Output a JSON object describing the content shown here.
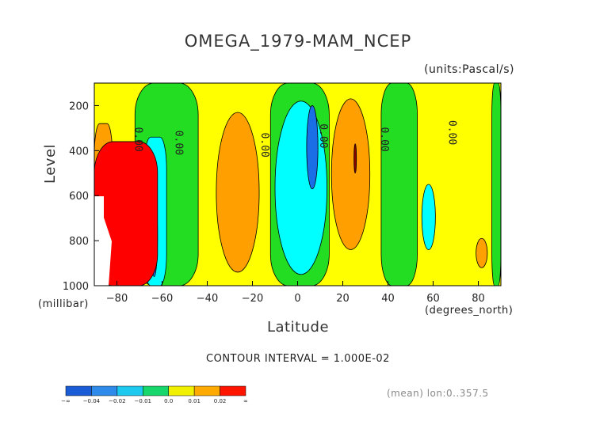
{
  "chart_data": {
    "type": "heatmap",
    "title": "OMEGA_1979-MAM_NCEP",
    "units": "(units:Pascal/s)",
    "xlabel": "Latitude",
    "xunit": "(degrees_north)",
    "ylabel": "Level",
    "yunit": "(millibar)",
    "xlim": [
      -90,
      90
    ],
    "ylim": [
      1000,
      100
    ],
    "x_ticks": [
      -80,
      -60,
      -40,
      -20,
      0,
      20,
      40,
      60,
      80
    ],
    "x_tick_labels": [
      "-80",
      "-60",
      "-40",
      "-20",
      "0",
      "20",
      "40",
      "60",
      "80"
    ],
    "y_ticks": [
      200,
      400,
      600,
      800,
      1000
    ],
    "y_tick_labels": [
      "200",
      "400",
      "600",
      "800",
      "1000"
    ],
    "contour_interval_text": "CONTOUR INTERVAL = 1.000E-02",
    "contour_labels": [
      {
        "text": "0.00",
        "x": -72,
        "y": 350
      },
      {
        "text": "0.00",
        "x": -54,
        "y": 365
      },
      {
        "text": "0.00",
        "x": -16,
        "y": 375
      },
      {
        "text": "0.00",
        "x": 10,
        "y": 335
      },
      {
        "text": "0.00",
        "x": 37,
        "y": 350
      },
      {
        "text": "0.00",
        "x": 67,
        "y": 320
      }
    ],
    "regions": [
      {
        "level": "0.0..0.01",
        "x": [
          -90,
          90
        ],
        "y": [
          100,
          1000
        ]
      },
      {
        "level": "-0.01..0.0",
        "x": [
          -72,
          -44
        ],
        "y": [
          100,
          1000
        ]
      },
      {
        "level": "-0.01..0.0",
        "x": [
          -12,
          14
        ],
        "y": [
          100,
          1000
        ]
      },
      {
        "level": "-0.01..0.0",
        "x": [
          37,
          53
        ],
        "y": [
          100,
          1000
        ]
      },
      {
        "level": "-0.01..0.0",
        "x": [
          86,
          90
        ],
        "y": [
          100,
          1000
        ]
      },
      {
        "level": "-0.02..-0.01",
        "x": [
          -68,
          -58
        ],
        "y": [
          340,
          1000
        ]
      },
      {
        "level": "-0.02..-0.01",
        "x": [
          -10,
          13
        ],
        "y": [
          180,
          950
        ]
      },
      {
        "level": "-0.02..-0.01",
        "x": [
          55,
          61
        ],
        "y": [
          550,
          840
        ]
      },
      {
        "level": "-0.04..-0.02",
        "x": [
          -65,
          -62
        ],
        "y": [
          600,
          960
        ]
      },
      {
        "level": "-0.04..-0.02",
        "x": [
          4,
          9
        ],
        "y": [
          200,
          570
        ]
      },
      {
        "level": "0.01..0.02",
        "x": [
          -36,
          -17
        ],
        "y": [
          230,
          940
        ]
      },
      {
        "level": "0.01..0.02",
        "x": [
          15,
          32
        ],
        "y": [
          170,
          840
        ]
      },
      {
        "level": "0.01..0.02",
        "x": [
          -90,
          -82
        ],
        "y": [
          280,
          1000
        ]
      },
      {
        "level": "0.01..0.02",
        "x": [
          79,
          84
        ],
        "y": [
          790,
          920
        ]
      },
      {
        "level": "0.02..inf",
        "x": [
          -90,
          -62
        ],
        "y": [
          360,
          1000
        ]
      },
      {
        "level": "> 0.03",
        "x": [
          25,
          26
        ],
        "y": [
          370,
          500
        ]
      }
    ]
  },
  "colorbar": {
    "labels": [
      "-∞",
      "-0.04",
      "-0.02",
      "-0.01",
      "0.0",
      "0.01",
      "0.02",
      "∞"
    ],
    "colors": [
      "#1a5cd6",
      "#2e8bea",
      "#1ec9f0",
      "#17d66b",
      "#f0f000",
      "#ffaa00",
      "#ff1400"
    ]
  },
  "mean_text": "(mean) lon:0..357.5",
  "colors": {
    "yellow": "#ffff00",
    "green": "#22dd22",
    "cyan": "#00ffff",
    "blue": "#1a6ee6",
    "orange": "#ff9f00",
    "red": "#ff0000",
    "darkred": "#8b0000"
  }
}
